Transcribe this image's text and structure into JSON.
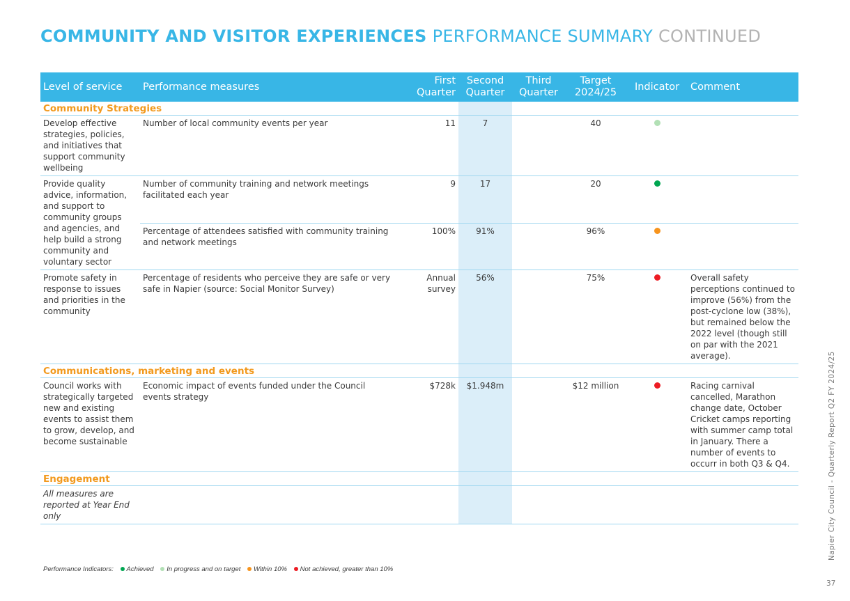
{
  "title": {
    "part1": "COMMUNITY AND VISITOR EXPERIENCES",
    "part2": "PERFORMANCE SUMMARY",
    "part3": "CONTINUED"
  },
  "colors": {
    "accent": "#38b6e6",
    "section": "#f29a1f",
    "achieved": "#00a651",
    "in_progress": "#b2e0b5",
    "within_10": "#f7941d",
    "not_achieved": "#ed1c24"
  },
  "headers": {
    "level": "Level of service",
    "measures": "Performance measures",
    "q1": "First Quarter",
    "q2": "Second Quarter",
    "q3": "Third Quarter",
    "target": "Target 2024/25",
    "indicator": "Indicator",
    "comment": "Comment"
  },
  "sections": [
    {
      "name": "Community Strategies",
      "rows": [
        {
          "level": "Develop effective strategies, policies, and initiatives that support community wellbeing",
          "measure": "Number of local community events per year",
          "q1": "11",
          "q2": "7",
          "q3": "",
          "target": "40",
          "indicator": "in_progress",
          "comment": ""
        },
        {
          "level": "Provide quality advice, information, and support to community groups and agencies, and help build a strong community and voluntary sector",
          "measure": "Number of community training and network meetings facilitated each year",
          "q1": "9",
          "q2": "17",
          "q3": "",
          "target": "20",
          "indicator": "achieved",
          "comment": ""
        },
        {
          "level": "",
          "measure": "Percentage of attendees satisfied with community training and network meetings",
          "q1": "100%",
          "q2": "91%",
          "q3": "",
          "target": "96%",
          "indicator": "within_10",
          "comment": ""
        },
        {
          "level": "Promote safety in response to issues and priorities in the community",
          "measure": "Percentage of residents who perceive they are safe or very safe in Napier (source: Social Monitor Survey)",
          "q1": "Annual survey",
          "q2": "56%",
          "q3": "",
          "target": "75%",
          "indicator": "not_achieved",
          "comment": "Overall safety perceptions continued to improve (56%) from the post-cyclone low (38%), but remained below the 2022 level (though still on par with the 2021 average)."
        }
      ]
    },
    {
      "name": "Communications, marketing and events",
      "rows": [
        {
          "level": "Council works with strategically targeted new and existing events to assist them to grow, develop, and become sustainable",
          "measure": "Economic impact of events funded under the Council events strategy",
          "q1": "$728k",
          "q2": "$1.948m",
          "q3": "",
          "target": "$12 million",
          "indicator": "not_achieved",
          "comment": "Racing carnival cancelled, Marathon change date, October Cricket camps reporting with summer camp total in January. There a number of events to occurr in both Q3 & Q4."
        }
      ]
    },
    {
      "name": "Engagement",
      "rows": [
        {
          "level": "All measures are reported at Year End only",
          "measure": "",
          "q1": "",
          "q2": "",
          "q3": "",
          "target": "",
          "indicator": "",
          "comment": ""
        }
      ]
    }
  ],
  "legend": {
    "label": "Performance Indicators:",
    "achieved": "Achieved",
    "in_progress": "In progress and on target",
    "within_10": "Within 10%",
    "not_achieved": "Not achieved, greater than 10%"
  },
  "side_text": "Napier City Council - Quarterly Report Q2 FY 2024/25",
  "page_number": "37"
}
